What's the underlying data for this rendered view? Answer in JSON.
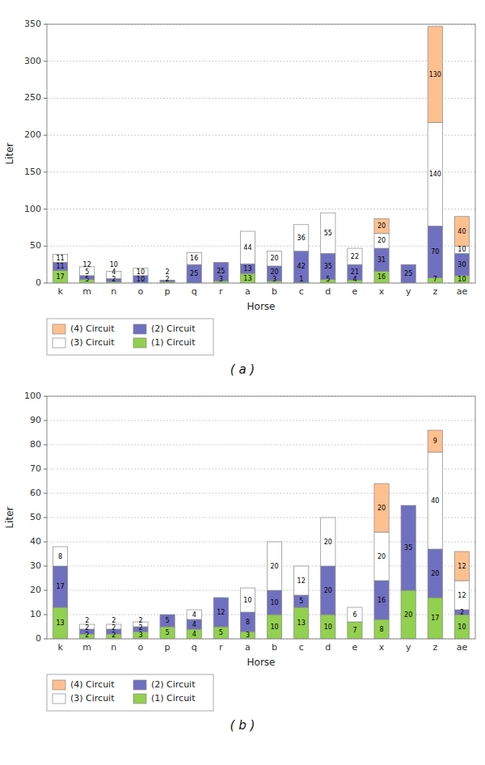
{
  "chart_data": [
    {
      "type": "bar",
      "stacked": true,
      "title": "( a )",
      "x_label": "Horse",
      "y_label": "Liter",
      "categories": [
        "k",
        "m",
        "n",
        "o",
        "p",
        "q",
        "r",
        "a",
        "b",
        "c",
        "d",
        "e",
        "x",
        "y",
        "z",
        "ae"
      ],
      "series": [
        {
          "name": "(1) Circuit",
          "color": "#92D050",
          "values": [
            17,
            5,
            2,
            0,
            2,
            0,
            3,
            13,
            3,
            1,
            5,
            4,
            16,
            0,
            7,
            10
          ]
        },
        {
          "name": "(2) Circuit",
          "color": "#7070C0",
          "values": [
            11,
            5,
            4,
            10,
            2,
            25,
            25,
            13,
            20,
            42,
            35,
            21,
            31,
            25,
            70,
            30
          ]
        },
        {
          "name": "(3) Circuit",
          "color": "#FFFFFF",
          "values": [
            11,
            12,
            10,
            10,
            0,
            16,
            0,
            44,
            20,
            36,
            55,
            22,
            20,
            0,
            140,
            10
          ]
        },
        {
          "name": "(4) Circuit",
          "color": "#FFC090",
          "values": [
            0,
            0,
            0,
            0,
            0,
            0,
            0,
            0,
            0,
            0,
            0,
            0,
            20,
            0,
            130,
            40
          ]
        }
      ],
      "ylim": [
        0,
        350
      ],
      "yticks": [
        0,
        50,
        100,
        150,
        200,
        250,
        300,
        350
      ],
      "grid": true,
      "data_labels": true,
      "legend": "bottom"
    },
    {
      "type": "bar",
      "stacked": true,
      "title": "( b )",
      "x_label": "Horse",
      "y_label": "Liter",
      "categories": [
        "k",
        "m",
        "n",
        "o",
        "p",
        "q",
        "r",
        "a",
        "b",
        "c",
        "d",
        "e",
        "x",
        "y",
        "z",
        "ae"
      ],
      "series": [
        {
          "name": "(1) Circuit",
          "color": "#92D050",
          "values": [
            13,
            2,
            2,
            3,
            5,
            4,
            5,
            3,
            10,
            13,
            10,
            7,
            8,
            20,
            17,
            10
          ]
        },
        {
          "name": "(2) Circuit",
          "color": "#7070C0",
          "values": [
            17,
            2,
            2,
            2,
            5,
            4,
            12,
            8,
            10,
            5,
            20,
            0,
            16,
            35,
            20,
            2
          ]
        },
        {
          "name": "(3) Circuit",
          "color": "#FFFFFF",
          "values": [
            8,
            2,
            2,
            2,
            0,
            4,
            0,
            10,
            20,
            12,
            20,
            6,
            20,
            0,
            40,
            12
          ]
        },
        {
          "name": "(4) Circuit",
          "color": "#FFC090",
          "values": [
            0,
            0,
            0,
            0,
            0,
            0,
            0,
            0,
            0,
            0,
            0,
            0,
            20,
            0,
            9,
            12
          ]
        }
      ],
      "ylim": [
        0,
        100
      ],
      "yticks": [
        0,
        10,
        20,
        30,
        40,
        50,
        60,
        70,
        80,
        90,
        100
      ],
      "grid": true,
      "data_labels": true,
      "legend": "bottom"
    }
  ]
}
